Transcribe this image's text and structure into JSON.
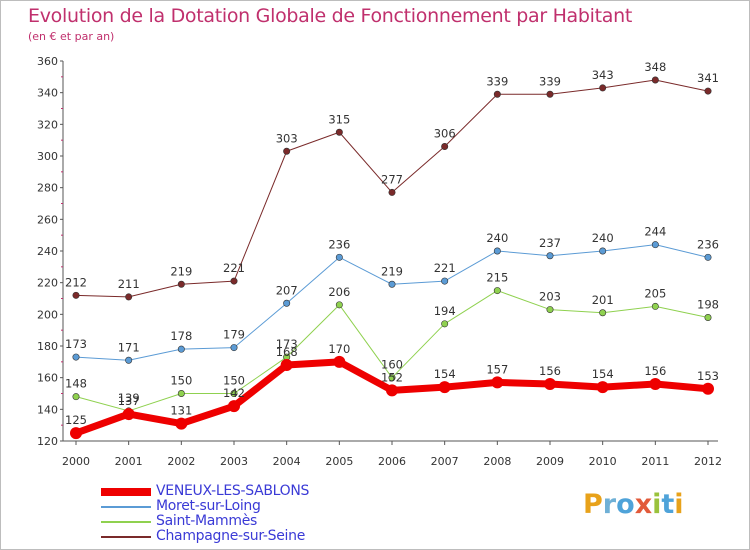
{
  "title": "Evolution de la Dotation Globale de Fonctionnement par Habitant",
  "subtitle": "(en € et par an)",
  "logo": [
    "P",
    "r",
    "o",
    "x",
    "i",
    "t",
    "i"
  ],
  "colors": {
    "title": "#c0306d",
    "legend_text": "#3a3ad6",
    "axis": "#555555",
    "grid": "#dddddd"
  },
  "chart_data": {
    "type": "line",
    "title": "Evolution de la Dotation Globale de Fonctionnement par Habitant",
    "ylabel": "(en € et par an)",
    "xlabel": "",
    "ylim": [
      120,
      360
    ],
    "yticks": [
      120,
      140,
      160,
      180,
      200,
      220,
      240,
      260,
      280,
      300,
      320,
      340,
      360
    ],
    "categories": [
      "2000",
      "2001",
      "2002",
      "2003",
      "2004",
      "2005",
      "2006",
      "2007",
      "2008",
      "2009",
      "2010",
      "2011",
      "2012"
    ],
    "legend_position": "bottom-left",
    "series": [
      {
        "name": "Champagne-sur-Seine",
        "color": "#7a2a2a",
        "width": 1,
        "values": [
          212,
          211,
          219,
          221,
          303,
          315,
          277,
          306,
          339,
          339,
          343,
          348,
          341
        ]
      },
      {
        "name": "Moret-sur-Loing",
        "color": "#5b9bd5",
        "width": 1,
        "values": [
          173,
          171,
          178,
          179,
          207,
          236,
          219,
          221,
          240,
          237,
          240,
          244,
          236
        ]
      },
      {
        "name": "Saint-Mammès",
        "color": "#8fd14f",
        "width": 1,
        "values": [
          148,
          139,
          150,
          150,
          173,
          206,
          160,
          194,
          215,
          203,
          201,
          205,
          198
        ]
      },
      {
        "name": "VENEUX-LES-SABLONS",
        "color": "#ee0000",
        "width": 7,
        "values": [
          125,
          137,
          131,
          142,
          168,
          170,
          152,
          154,
          157,
          156,
          154,
          156,
          153
        ]
      }
    ],
    "legend_order": [
      "VENEUX-LES-SABLONS",
      "Moret-sur-Loing",
      "Saint-Mammès",
      "Champagne-sur-Seine"
    ]
  }
}
